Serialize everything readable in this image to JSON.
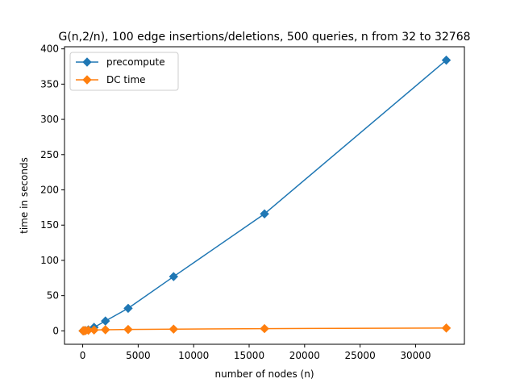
{
  "chart_data": {
    "type": "line",
    "title": "G(n,2/n), 100 edge insertions/deletions, 500 queries, n from 32 to 32768",
    "xlabel": "number of nodes (n)",
    "ylabel": "time in seconds",
    "xlim": [
      -1640,
      34400
    ],
    "ylim": [
      -19,
      403
    ],
    "xticks": [
      0,
      5000,
      10000,
      15000,
      20000,
      25000,
      30000
    ],
    "yticks": [
      0,
      50,
      100,
      150,
      200,
      250,
      300,
      350,
      400
    ],
    "grid": false,
    "legend_position": "upper-left",
    "marker": "diamond",
    "series": [
      {
        "name": "precompute",
        "color": "#1f77b4",
        "x": [
          32,
          64,
          128,
          256,
          512,
          1024,
          2048,
          4096,
          8192,
          16384,
          32768
        ],
        "y": [
          0.05,
          0.1,
          0.2,
          0.5,
          1.5,
          5,
          14,
          32,
          77,
          166,
          384
        ]
      },
      {
        "name": "DC time",
        "color": "#ff7f0e",
        "x": [
          32,
          64,
          128,
          256,
          512,
          1024,
          2048,
          4096,
          8192,
          16384,
          32768
        ],
        "y": [
          0.05,
          0.1,
          0.2,
          0.4,
          0.8,
          1.2,
          1.6,
          2.0,
          2.5,
          3.2,
          4.0
        ]
      }
    ]
  }
}
